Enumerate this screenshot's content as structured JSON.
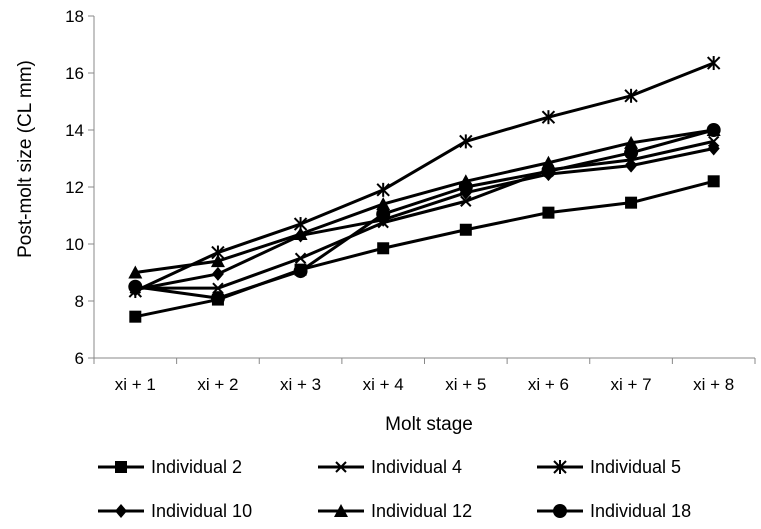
{
  "chart_data": {
    "type": "line",
    "xlabel": "Molt stage",
    "ylabel": "Post-molt size (CL mm)",
    "categories": [
      "xi + 1",
      "xi + 2",
      "xi + 3",
      "xi + 4",
      "xi + 5",
      "xi + 6",
      "xi + 7",
      "xi + 8"
    ],
    "ylim": [
      6,
      18
    ],
    "yticks": [
      "6",
      "8",
      "10",
      "12",
      "14",
      "16",
      "18"
    ],
    "grid": false,
    "legend_position": "bottom",
    "line_color": "#000000",
    "series": [
      {
        "name": "Individual 2",
        "marker": "square",
        "values": [
          7.45,
          8.05,
          9.1,
          9.85,
          10.5,
          11.1,
          11.45,
          12.2
        ]
      },
      {
        "name": "Individual 4",
        "marker": "x",
        "values": [
          8.45,
          8.45,
          9.5,
          10.75,
          11.5,
          12.6,
          12.95,
          13.6
        ]
      },
      {
        "name": "Individual 5",
        "marker": "asterisk",
        "values": [
          8.35,
          9.7,
          10.7,
          11.9,
          13.6,
          14.45,
          15.2,
          16.35
        ]
      },
      {
        "name": "Individual 10",
        "marker": "diamond",
        "values": [
          8.4,
          8.95,
          10.3,
          10.85,
          11.8,
          12.45,
          12.75,
          13.35
        ]
      },
      {
        "name": "Individual 12",
        "marker": "triangle",
        "values": [
          9.0,
          9.4,
          10.35,
          11.4,
          12.2,
          12.85,
          13.55,
          14.0
        ]
      },
      {
        "name": "Individual 18",
        "marker": "circle",
        "values": [
          8.5,
          8.1,
          9.05,
          11.05,
          12.0,
          12.55,
          13.2,
          14.0
        ]
      }
    ]
  }
}
